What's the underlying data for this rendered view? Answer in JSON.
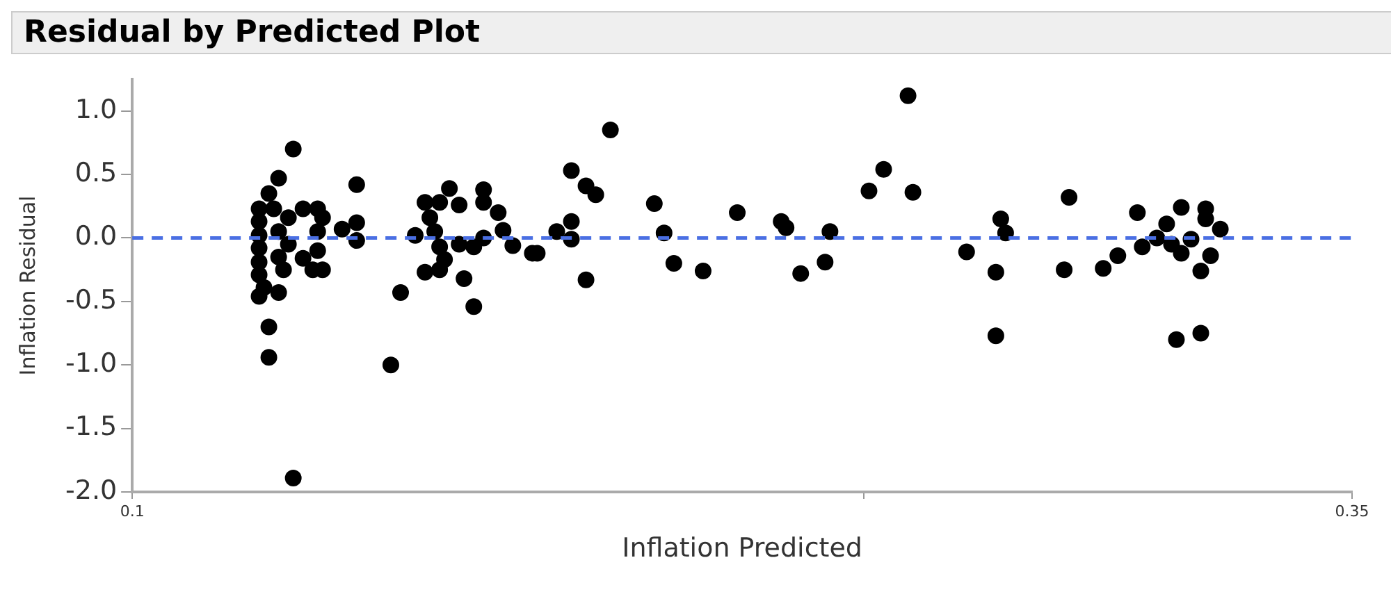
{
  "chart_data": {
    "type": "scatter",
    "title": "Residual by Predicted Plot",
    "xlabel": "Inflation Predicted",
    "ylabel": "Inflation Residual",
    "xlim": [
      0.1,
      0.35
    ],
    "xticks": [
      0.1,
      {
        "value": 0.25,
        "label": null
      },
      0.35
    ],
    "ylim": [
      -2.0,
      1.25
    ],
    "yticks": [
      {
        "value": -2,
        "label": "-2.0"
      },
      {
        "value": -1.5,
        "label": "-1.5"
      },
      {
        "value": -1,
        "label": "-1.0"
      },
      {
        "value": -0.5,
        "label": "-0.5"
      },
      {
        "value": 0,
        "label": "0.0"
      },
      {
        "value": 0.5,
        "label": "0.5"
      },
      {
        "value": 1,
        "label": "1.0"
      }
    ],
    "grid": false,
    "legend": false,
    "marker": "circle",
    "ref_lines": [
      {
        "axis": "y",
        "value": 0,
        "label": null,
        "color": "#4a6fe3",
        "line_style": "dashed"
      }
    ],
    "series": [
      {
        "color": "#000000",
        "x": [
          0.133,
          0.13,
          0.128,
          0.146,
          0.126,
          0.126,
          0.126,
          0.126,
          0.126,
          0.126,
          0.127,
          0.126,
          0.13,
          0.129,
          0.13,
          0.13,
          0.131,
          0.132,
          0.132,
          0.135,
          0.138,
          0.139,
          0.138,
          0.138,
          0.137,
          0.139,
          0.135,
          0.128,
          0.128,
          0.133,
          0.143,
          0.146,
          0.146,
          0.155,
          0.153,
          0.158,
          0.165,
          0.172,
          0.172,
          0.16,
          0.163,
          0.167,
          0.161,
          0.162,
          0.163,
          0.164,
          0.16,
          0.163,
          0.168,
          0.17,
          0.175,
          0.176,
          0.167,
          0.17,
          0.172,
          0.178,
          0.182,
          0.198,
          0.19,
          0.193,
          0.195,
          0.19,
          0.187,
          0.19,
          0.183,
          0.193,
          0.207,
          0.209,
          0.211,
          0.217,
          0.224,
          0.233,
          0.234,
          0.237,
          0.242,
          0.243,
          0.251,
          0.254,
          0.26,
          0.259,
          0.271,
          0.278,
          0.279,
          0.277,
          0.277,
          0.292,
          0.291,
          0.299,
          0.302,
          0.307,
          0.306,
          0.312,
          0.31,
          0.313,
          0.315,
          0.315,
          0.32,
          0.32,
          0.323,
          0.317,
          0.321,
          0.319,
          0.314,
          0.319
        ],
        "values": [
          0.7,
          0.47,
          0.35,
          0.42,
          0.23,
          0.13,
          0.02,
          -0.08,
          -0.19,
          -0.29,
          -0.39,
          -0.46,
          -0.43,
          0.23,
          0.05,
          -0.15,
          -0.25,
          0.16,
          -0.05,
          0.23,
          0.23,
          0.16,
          0.05,
          -0.1,
          -0.25,
          -0.25,
          -0.16,
          -0.7,
          -0.94,
          -1.89,
          0.07,
          0.12,
          -0.02,
          -0.43,
          -1.0,
          0.02,
          0.39,
          0.38,
          0.28,
          0.28,
          0.28,
          0.26,
          0.16,
          0.05,
          -0.07,
          -0.17,
          -0.27,
          -0.25,
          -0.32,
          -0.54,
          0.2,
          0.06,
          -0.05,
          -0.07,
          0.0,
          -0.06,
          -0.12,
          0.85,
          0.53,
          0.41,
          0.34,
          0.13,
          0.05,
          -0.01,
          -0.12,
          -0.33,
          0.27,
          0.04,
          -0.2,
          -0.26,
          0.2,
          0.13,
          0.08,
          -0.28,
          -0.19,
          0.05,
          0.37,
          0.54,
          0.36,
          1.12,
          -0.11,
          0.15,
          0.04,
          -0.27,
          -0.77,
          0.32,
          -0.25,
          -0.24,
          -0.14,
          -0.07,
          0.2,
          0.11,
          0.0,
          -0.05,
          -0.12,
          0.24,
          0.23,
          0.15,
          0.07,
          -0.01,
          -0.14,
          -0.26,
          -0.8,
          -0.75
        ]
      }
    ]
  }
}
